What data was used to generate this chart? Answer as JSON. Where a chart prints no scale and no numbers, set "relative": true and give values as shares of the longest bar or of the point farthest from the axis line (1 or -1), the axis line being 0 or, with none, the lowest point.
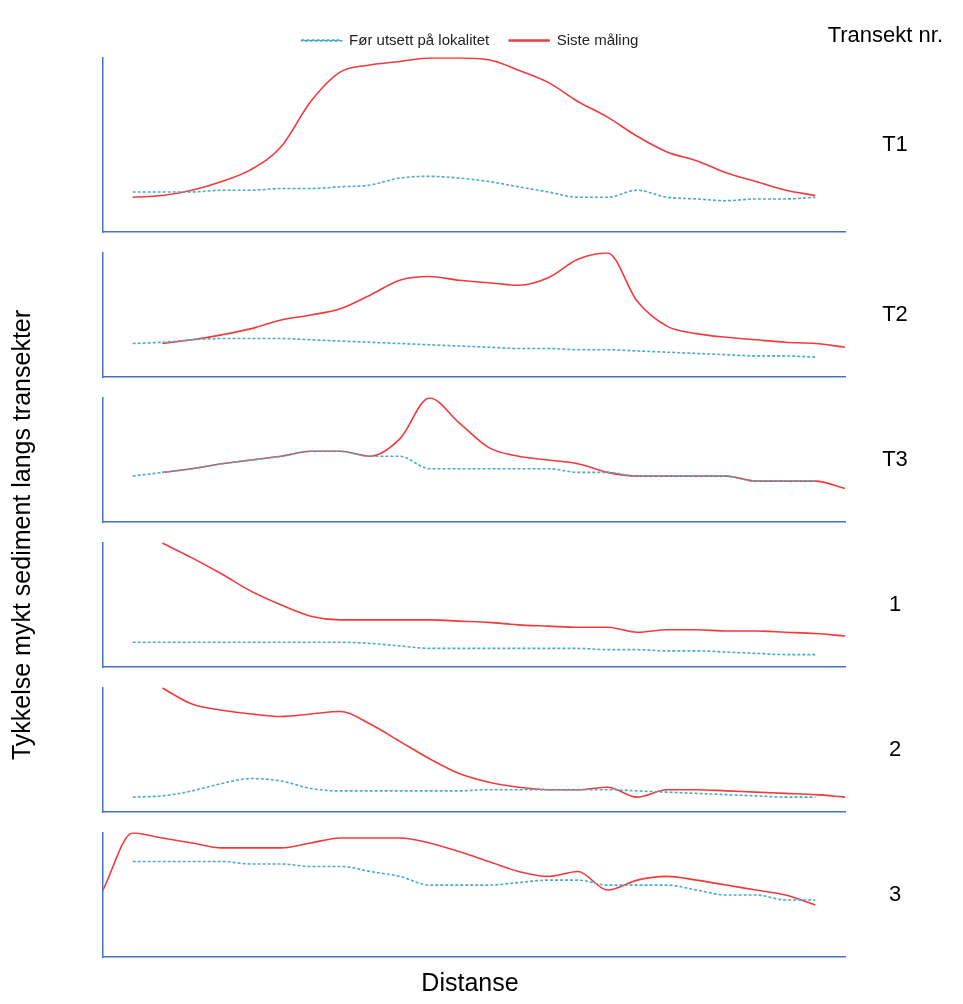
{
  "chart_data": [
    {
      "type": "line",
      "ylabel": "Tykkelse mykt sediment langs transekter",
      "annotations": [
        "Transekt nr.",
        "T1"
      ],
      "relative": true,
      "legend": "top",
      "marker": "none",
      "categories": [
        null,
        null,
        null,
        null,
        null,
        null,
        null,
        null,
        null,
        null,
        null,
        null,
        null,
        null,
        null,
        null,
        null,
        null,
        null,
        null,
        null,
        null,
        null,
        null,
        null,
        null
      ],
      "series": [
        {
          "name": "Før utsett på lokalitet",
          "color": "#4bacc6",
          "line_style": "dashed",
          "values": [
            null,
            0.23,
            0.23,
            0.23,
            0.24,
            0.24,
            0.25,
            0.25,
            0.26,
            0.27,
            0.31,
            0.32,
            0.31,
            0.29,
            0.26,
            0.23,
            0.2,
            0.2,
            0.24,
            0.2,
            0.19,
            0.18,
            0.19,
            0.19,
            0.2,
            null
          ]
        },
        {
          "name": "Siste måling",
          "color": "#f23a3a",
          "line_style": "solid",
          "values": [
            null,
            0.2,
            0.21,
            0.24,
            0.29,
            0.36,
            0.49,
            0.75,
            0.92,
            0.96,
            0.98,
            1,
            1,
            0.99,
            0.93,
            0.86,
            0.75,
            0.66,
            0.55,
            0.46,
            0.41,
            0.34,
            0.29,
            0.24,
            0.21,
            null
          ]
        }
      ]
    },
    {
      "type": "line",
      "annotations": [
        "T2"
      ],
      "relative": true,
      "marker": "none",
      "categories": [
        null,
        null,
        null,
        null,
        null,
        null,
        null,
        null,
        null,
        null,
        null,
        null,
        null,
        null,
        null,
        null,
        null,
        null,
        null,
        null,
        null,
        null,
        null,
        null,
        null,
        null
      ],
      "series": [
        {
          "color": "#4bacc6",
          "line_style": "dashed",
          "values": [
            null,
            0.27,
            0.28,
            0.3,
            0.31,
            0.31,
            0.31,
            0.3,
            0.29,
            0.28,
            0.27,
            0.26,
            0.25,
            0.24,
            0.23,
            0.23,
            0.22,
            0.22,
            0.21,
            0.2,
            0.19,
            0.18,
            0.17,
            0.17,
            0.16,
            null
          ]
        },
        {
          "color": "#f23a3a",
          "line_style": "solid",
          "values": [
            null,
            null,
            0.27,
            0.3,
            0.34,
            0.39,
            0.46,
            0.5,
            0.55,
            0.66,
            0.78,
            0.81,
            0.78,
            0.76,
            0.74,
            0.8,
            0.95,
            1,
            0.61,
            0.41,
            0.35,
            0.32,
            0.3,
            0.28,
            0.27,
            0.24
          ]
        }
      ]
    },
    {
      "type": "line",
      "annotations": [
        "T3"
      ],
      "relative": true,
      "marker": "none",
      "categories": [
        null,
        null,
        null,
        null,
        null,
        null,
        null,
        null,
        null,
        null,
        null,
        null,
        null,
        null,
        null,
        null,
        null,
        null,
        null,
        null,
        null,
        null,
        null,
        null,
        null,
        null
      ],
      "series": [
        {
          "color": "#4bacc6",
          "line_style": "dashed",
          "values": [
            null,
            0.37,
            0.4,
            0.43,
            0.47,
            0.5,
            0.53,
            0.57,
            0.57,
            0.53,
            0.53,
            0.43,
            0.43,
            0.43,
            0.43,
            0.43,
            0.4,
            0.4,
            0.37,
            0.37,
            0.37,
            0.37,
            0.33,
            0.33,
            0.33,
            null
          ]
        },
        {
          "color": "#f23a3a",
          "line_style": "solid",
          "values": [
            null,
            null,
            0.4,
            0.43,
            0.47,
            0.5,
            0.53,
            0.57,
            0.57,
            0.53,
            0.67,
            1,
            0.8,
            0.6,
            0.53,
            0.5,
            0.47,
            0.4,
            0.37,
            0.37,
            0.37,
            0.37,
            0.33,
            0.33,
            0.33,
            0.27
          ]
        }
      ]
    },
    {
      "type": "line",
      "annotations": [
        "1"
      ],
      "relative": true,
      "marker": "none",
      "categories": [
        null,
        null,
        null,
        null,
        null,
        null,
        null,
        null,
        null,
        null,
        null,
        null,
        null,
        null,
        null,
        null,
        null,
        null,
        null,
        null,
        null,
        null,
        null,
        null,
        null,
        null
      ],
      "series": [
        {
          "color": "#4bacc6",
          "line_style": "dashed",
          "values": [
            null,
            0.2,
            0.2,
            0.2,
            0.2,
            0.2,
            0.2,
            0.2,
            0.2,
            0.19,
            0.17,
            0.15,
            0.15,
            0.15,
            0.15,
            0.15,
            0.15,
            0.14,
            0.14,
            0.13,
            0.13,
            0.12,
            0.11,
            0.1,
            0.1,
            null
          ]
        },
        {
          "color": "#f23a3a",
          "line_style": "solid",
          "values": [
            null,
            null,
            1,
            0.88,
            0.75,
            0.61,
            0.5,
            0.41,
            0.38,
            0.38,
            0.38,
            0.38,
            0.37,
            0.36,
            0.34,
            0.33,
            0.32,
            0.32,
            0.28,
            0.3,
            0.3,
            0.29,
            0.29,
            0.28,
            0.27,
            0.25
          ]
        }
      ]
    },
    {
      "type": "line",
      "annotations": [
        "2"
      ],
      "relative": true,
      "marker": "none",
      "categories": [
        null,
        null,
        null,
        null,
        null,
        null,
        null,
        null,
        null,
        null,
        null,
        null,
        null,
        null,
        null,
        null,
        null,
        null,
        null,
        null,
        null,
        null,
        null,
        null,
        null,
        null
      ],
      "series": [
        {
          "color": "#4bacc6",
          "line_style": "dashed",
          "values": [
            null,
            0.12,
            0.13,
            0.17,
            0.23,
            0.27,
            0.25,
            0.19,
            0.17,
            0.17,
            0.17,
            0.17,
            0.17,
            0.18,
            0.18,
            0.18,
            0.18,
            0.18,
            0.17,
            0.16,
            0.15,
            0.14,
            0.13,
            0.12,
            0.12,
            null
          ]
        },
        {
          "color": "#f23a3a",
          "line_style": "solid",
          "values": [
            null,
            null,
            1,
            0.87,
            0.82,
            0.79,
            0.77,
            0.79,
            0.81,
            0.71,
            0.57,
            0.43,
            0.31,
            0.24,
            0.2,
            0.18,
            0.18,
            0.2,
            0.12,
            0.18,
            0.18,
            0.17,
            0.16,
            0.15,
            0.14,
            0.12
          ]
        }
      ]
    },
    {
      "type": "line",
      "annotations": [
        "3"
      ],
      "xlabel": "Distanse",
      "relative": true,
      "marker": "none",
      "categories": [
        null,
        null,
        null,
        null,
        null,
        null,
        null,
        null,
        null,
        null,
        null,
        null,
        null,
        null,
        null,
        null,
        null,
        null,
        null,
        null,
        null,
        null,
        null,
        null,
        null,
        null
      ],
      "series": [
        {
          "color": "#4bacc6",
          "line_style": "dashed",
          "values": [
            null,
            0.77,
            0.77,
            0.77,
            0.77,
            0.75,
            0.75,
            0.73,
            0.73,
            0.69,
            0.65,
            0.58,
            0.58,
            0.58,
            0.6,
            0.62,
            0.62,
            0.58,
            0.58,
            0.58,
            0.54,
            0.5,
            0.5,
            0.46,
            0.46,
            null
          ]
        },
        {
          "color": "#f23a3a",
          "line_style": "solid",
          "values": [
            0.54,
            1,
            0.96,
            0.92,
            0.88,
            0.88,
            0.88,
            0.92,
            0.96,
            0.96,
            0.96,
            0.92,
            0.85,
            0.77,
            0.69,
            0.65,
            0.69,
            0.54,
            0.62,
            0.65,
            0.62,
            0.58,
            0.54,
            0.5,
            0.42,
            null
          ]
        }
      ]
    }
  ]
}
